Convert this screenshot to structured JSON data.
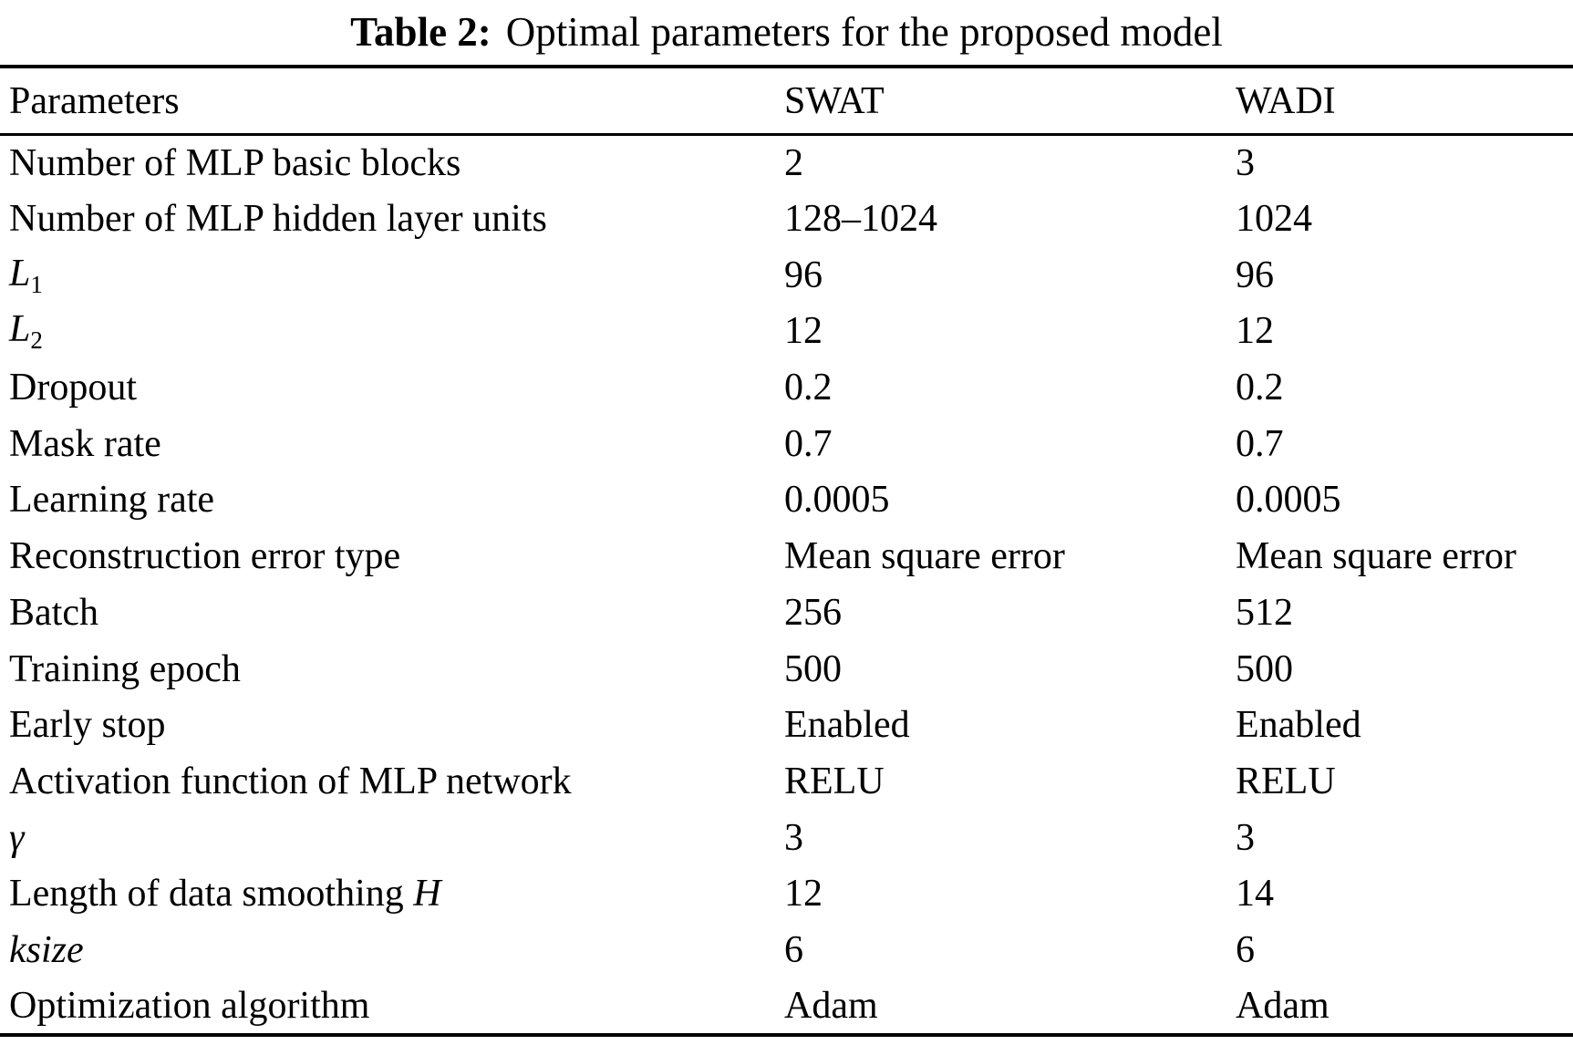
{
  "title": {
    "label": "Table 2:",
    "text": "Optimal parameters for the proposed model"
  },
  "table": {
    "columns": [
      "Parameters",
      "SWAT",
      "WADI"
    ],
    "rows": [
      {
        "param": [
          {
            "text": "Number of MLP basic blocks"
          }
        ],
        "swat": "2",
        "wadi": "3"
      },
      {
        "param": [
          {
            "text": "Number of MLP hidden layer units"
          }
        ],
        "swat": "128–1024",
        "wadi": "1024"
      },
      {
        "param": [
          {
            "text": "L",
            "italic": true
          },
          {
            "text": "1",
            "sub": true
          }
        ],
        "swat": "96",
        "wadi": "96"
      },
      {
        "param": [
          {
            "text": "L",
            "italic": true
          },
          {
            "text": "2",
            "sub": true
          }
        ],
        "swat": "12",
        "wadi": "12"
      },
      {
        "param": [
          {
            "text": "Dropout"
          }
        ],
        "swat": "0.2",
        "wadi": "0.2"
      },
      {
        "param": [
          {
            "text": "Mask rate"
          }
        ],
        "swat": "0.7",
        "wadi": "0.7"
      },
      {
        "param": [
          {
            "text": "Learning rate"
          }
        ],
        "swat": "0.0005",
        "wadi": "0.0005"
      },
      {
        "param": [
          {
            "text": "Reconstruction error type"
          }
        ],
        "swat": "Mean square error",
        "wadi": "Mean square error"
      },
      {
        "param": [
          {
            "text": "Batch"
          }
        ],
        "swat": "256",
        "wadi": "512"
      },
      {
        "param": [
          {
            "text": "Training epoch"
          }
        ],
        "swat": "500",
        "wadi": "500"
      },
      {
        "param": [
          {
            "text": "Early stop"
          }
        ],
        "swat": "Enabled",
        "wadi": "Enabled"
      },
      {
        "param": [
          {
            "text": "Activation function of MLP network"
          }
        ],
        "swat": "RELU",
        "wadi": "RELU"
      },
      {
        "param": [
          {
            "text": "γ",
            "italic": true
          }
        ],
        "swat": "3",
        "wadi": "3"
      },
      {
        "param": [
          {
            "text": "Length of data smoothing "
          },
          {
            "text": "H",
            "italic": true
          }
        ],
        "swat": "12",
        "wadi": "14"
      },
      {
        "param": [
          {
            "text": "ksize",
            "italic": true
          }
        ],
        "swat": "6",
        "wadi": "6"
      },
      {
        "param": [
          {
            "text": "Optimization algorithm"
          }
        ],
        "swat": "Adam",
        "wadi": "Adam"
      }
    ]
  }
}
